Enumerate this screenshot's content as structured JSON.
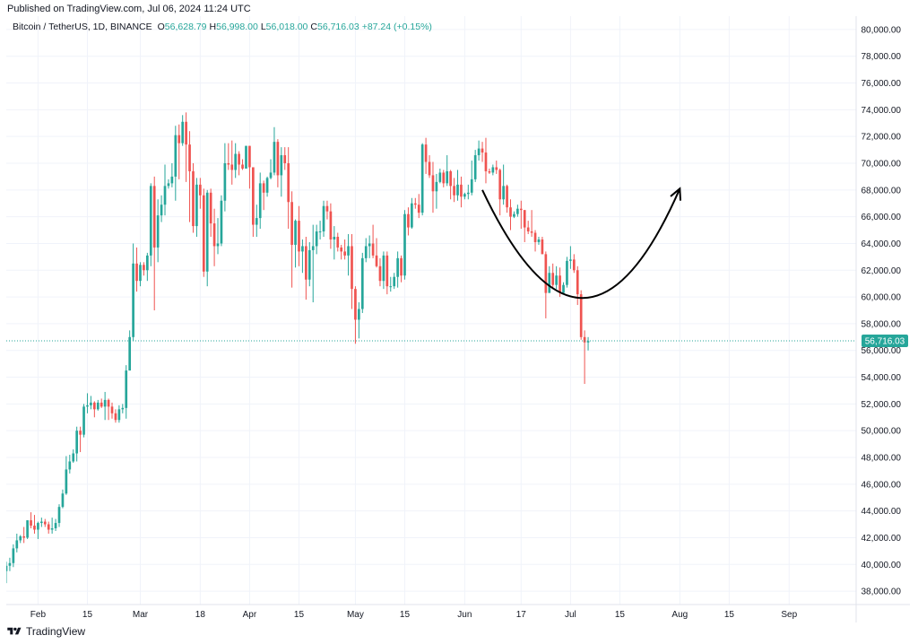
{
  "header": {
    "published": "Published on TradingView.com, Jul 06, 2024 11:24 UTC"
  },
  "legend": {
    "symbol": "Bitcoin / TetherUS, 1D, BINANCE",
    "o_label": "O",
    "o": "56,628.79",
    "h_label": "H",
    "h": "56,998.00",
    "l_label": "L",
    "l": "56,018.00",
    "c_label": "C",
    "c": "56,716.03",
    "change": "+87.24 (+0.15%)"
  },
  "footer": {
    "brand": "TradingView"
  },
  "colors": {
    "up": "#26a69a",
    "down": "#ef5350",
    "grid": "#f0f3fa",
    "text": "#131722"
  },
  "chart_data": {
    "type": "candlestick",
    "x_range": [
      "2024-01-23",
      "2024-09-20"
    ],
    "y_range": [
      37000,
      81000
    ],
    "y_ticks": [
      "38,000.00",
      "40,000.00",
      "42,000.00",
      "44,000.00",
      "46,000.00",
      "48,000.00",
      "50,000.00",
      "52,000.00",
      "54,000.00",
      "56,000.00",
      "58,000.00",
      "60,000.00",
      "62,000.00",
      "64,000.00",
      "66,000.00",
      "68,000.00",
      "70,000.00",
      "72,000.00",
      "74,000.00",
      "76,000.00",
      "78,000.00",
      "80,000.00"
    ],
    "x_ticks": [
      {
        "date": "2024-02-01",
        "label": "Feb"
      },
      {
        "date": "2024-02-15",
        "label": "15"
      },
      {
        "date": "2024-03-01",
        "label": "Mar"
      },
      {
        "date": "2024-03-18",
        "label": "18"
      },
      {
        "date": "2024-04-01",
        "label": "Apr"
      },
      {
        "date": "2024-04-15",
        "label": "15"
      },
      {
        "date": "2024-05-01",
        "label": "May"
      },
      {
        "date": "2024-05-15",
        "label": "15"
      },
      {
        "date": "2024-06-01",
        "label": "Jun"
      },
      {
        "date": "2024-06-17",
        "label": "17"
      },
      {
        "date": "2024-07-01",
        "label": "Jul"
      },
      {
        "date": "2024-07-15",
        "label": "15"
      },
      {
        "date": "2024-08-01",
        "label": "Aug"
      },
      {
        "date": "2024-08-15",
        "label": "15"
      },
      {
        "date": "2024-09-01",
        "label": "Sep"
      }
    ],
    "last_price": 56716.03,
    "last_price_label": "56,716.03",
    "candles": [
      [
        "2024-01-23",
        39500,
        40200,
        38600,
        39900
      ],
      [
        "2024-01-24",
        39900,
        40500,
        39500,
        40100
      ],
      [
        "2024-01-25",
        40100,
        41500,
        39800,
        41200
      ],
      [
        "2024-01-26",
        41200,
        42300,
        40900,
        41800
      ],
      [
        "2024-01-27",
        41800,
        42200,
        41600,
        42100
      ],
      [
        "2024-01-28",
        42100,
        42800,
        41600,
        42000
      ],
      [
        "2024-01-29",
        42000,
        43300,
        41900,
        43300
      ],
      [
        "2024-01-30",
        43300,
        43900,
        42700,
        42900
      ],
      [
        "2024-01-31",
        42900,
        43700,
        42300,
        42600
      ],
      [
        "2024-02-01",
        42600,
        43200,
        41900,
        43100
      ],
      [
        "2024-02-02",
        43100,
        43500,
        42800,
        43200
      ],
      [
        "2024-02-03",
        43200,
        43400,
        42800,
        43000
      ],
      [
        "2024-02-04",
        43000,
        43200,
        42300,
        42600
      ],
      [
        "2024-02-05",
        42600,
        43500,
        42300,
        42700
      ],
      [
        "2024-02-06",
        42700,
        43400,
        42500,
        43100
      ],
      [
        "2024-02-07",
        43100,
        44500,
        42800,
        44300
      ],
      [
        "2024-02-08",
        44300,
        45600,
        44200,
        45300
      ],
      [
        "2024-02-09",
        45300,
        48100,
        45200,
        47100
      ],
      [
        "2024-02-10",
        47100,
        48200,
        46800,
        47700
      ],
      [
        "2024-02-11",
        47700,
        48600,
        47600,
        48300
      ],
      [
        "2024-02-12",
        48300,
        50300,
        47700,
        50000
      ],
      [
        "2024-02-13",
        50000,
        50300,
        48400,
        49700
      ],
      [
        "2024-02-14",
        49700,
        52000,
        49500,
        51800
      ],
      [
        "2024-02-15",
        51800,
        52800,
        51300,
        51900
      ],
      [
        "2024-02-16",
        51900,
        52600,
        51600,
        52100
      ],
      [
        "2024-02-17",
        52100,
        52200,
        51000,
        51600
      ],
      [
        "2024-02-18",
        51600,
        52300,
        51500,
        52100
      ],
      [
        "2024-02-19",
        52100,
        52400,
        51700,
        51800
      ],
      [
        "2024-02-20",
        51800,
        52900,
        50800,
        52300
      ],
      [
        "2024-02-21",
        52300,
        52400,
        50800,
        51800
      ],
      [
        "2024-02-22",
        51800,
        52100,
        50900,
        51300
      ],
      [
        "2024-02-23",
        51300,
        51600,
        50600,
        50800
      ],
      [
        "2024-02-24",
        50800,
        51900,
        50600,
        51600
      ],
      [
        "2024-02-25",
        51600,
        52000,
        51300,
        51700
      ],
      [
        "2024-02-26",
        51700,
        54900,
        50900,
        54500
      ],
      [
        "2024-02-27",
        54500,
        57500,
        54500,
        57000
      ],
      [
        "2024-02-28",
        57000,
        64000,
        56700,
        62500
      ],
      [
        "2024-02-29",
        62500,
        63700,
        60400,
        61200
      ],
      [
        "2024-03-01",
        61200,
        62600,
        60800,
        62400
      ],
      [
        "2024-03-02",
        62400,
        62600,
        61600,
        62000
      ],
      [
        "2024-03-03",
        62000,
        63300,
        61200,
        63100
      ],
      [
        "2024-03-04",
        63100,
        68500,
        62300,
        68300
      ],
      [
        "2024-03-05",
        68300,
        69000,
        59000,
        63700
      ],
      [
        "2024-03-06",
        63700,
        67300,
        62600,
        66100
      ],
      [
        "2024-03-07",
        66100,
        67600,
        65600,
        66900
      ],
      [
        "2024-03-08",
        66900,
        69900,
        66100,
        68300
      ],
      [
        "2024-03-09",
        68300,
        68800,
        68100,
        68500
      ],
      [
        "2024-03-10",
        68500,
        70000,
        68200,
        69000
      ],
      [
        "2024-03-11",
        69000,
        72800,
        67200,
        72100
      ],
      [
        "2024-03-12",
        72100,
        72900,
        68800,
        71500
      ],
      [
        "2024-03-13",
        71500,
        73600,
        71300,
        73100
      ],
      [
        "2024-03-14",
        73100,
        73800,
        68600,
        71400
      ],
      [
        "2024-03-15",
        71400,
        72400,
        65600,
        69400
      ],
      [
        "2024-03-16",
        69400,
        70000,
        64800,
        65300
      ],
      [
        "2024-03-17",
        65300,
        68900,
        64500,
        68400
      ],
      [
        "2024-03-18",
        68400,
        68900,
        66600,
        67600
      ],
      [
        "2024-03-19",
        67600,
        68100,
        61500,
        61900
      ],
      [
        "2024-03-20",
        61900,
        68000,
        60800,
        67800
      ],
      [
        "2024-03-21",
        67800,
        68100,
        64500,
        65500
      ],
      [
        "2024-03-22",
        65500,
        66600,
        62300,
        63800
      ],
      [
        "2024-03-23",
        63800,
        65900,
        63200,
        64000
      ],
      [
        "2024-03-24",
        64000,
        67600,
        63800,
        67200
      ],
      [
        "2024-03-25",
        67200,
        71500,
        66400,
        70000
      ],
      [
        "2024-03-26",
        70000,
        71500,
        69500,
        69900
      ],
      [
        "2024-03-27",
        69900,
        71700,
        68400,
        69500
      ],
      [
        "2024-03-28",
        69500,
        71500,
        68900,
        70700
      ],
      [
        "2024-03-29",
        70700,
        70900,
        69100,
        69900
      ],
      [
        "2024-03-30",
        69900,
        70300,
        69500,
        69600
      ],
      [
        "2024-03-31",
        69600,
        71300,
        69600,
        71300
      ],
      [
        "2024-04-01",
        71300,
        71300,
        68100,
        69700
      ],
      [
        "2024-04-02",
        69700,
        69700,
        64500,
        65400
      ],
      [
        "2024-04-03",
        65400,
        66900,
        64500,
        65900
      ],
      [
        "2024-04-04",
        65900,
        69300,
        65100,
        68500
      ],
      [
        "2024-04-05",
        68500,
        68700,
        66500,
        67800
      ],
      [
        "2024-04-06",
        67800,
        69000,
        67500,
        68900
      ],
      [
        "2024-04-07",
        68900,
        70300,
        68800,
        69300
      ],
      [
        "2024-04-08",
        69300,
        72700,
        69100,
        71600
      ],
      [
        "2024-04-09",
        71600,
        71800,
        68200,
        69100
      ],
      [
        "2024-04-10",
        69100,
        71200,
        67500,
        70600
      ],
      [
        "2024-04-11",
        70600,
        71200,
        69500,
        70000
      ],
      [
        "2024-04-12",
        70000,
        71200,
        65100,
        67100
      ],
      [
        "2024-04-13",
        67100,
        67900,
        60700,
        63900
      ],
      [
        "2024-04-14",
        63900,
        65800,
        62200,
        65700
      ],
      [
        "2024-04-15",
        65700,
        66800,
        62300,
        63400
      ],
      [
        "2024-04-16",
        63400,
        64300,
        61800,
        63800
      ],
      [
        "2024-04-17",
        63800,
        64500,
        59800,
        61300
      ],
      [
        "2024-04-18",
        61300,
        64100,
        60800,
        63500
      ],
      [
        "2024-04-19",
        63500,
        65400,
        59600,
        63800
      ],
      [
        "2024-04-20",
        63800,
        65400,
        63200,
        64900
      ],
      [
        "2024-04-21",
        64900,
        65700,
        64300,
        64900
      ],
      [
        "2024-04-22",
        64900,
        67200,
        64500,
        66800
      ],
      [
        "2024-04-23",
        66800,
        67200,
        65800,
        66400
      ],
      [
        "2024-04-24",
        66400,
        67000,
        63600,
        64300
      ],
      [
        "2024-04-25",
        64300,
        65300,
        62800,
        64500
      ],
      [
        "2024-04-26",
        64500,
        64800,
        63400,
        63700
      ],
      [
        "2024-04-27",
        63700,
        63900,
        62800,
        63400
      ],
      [
        "2024-04-28",
        63400,
        64300,
        62800,
        63100
      ],
      [
        "2024-04-29",
        63100,
        64700,
        61600,
        63800
      ],
      [
        "2024-04-30",
        63800,
        64700,
        59100,
        60600
      ],
      [
        "2024-05-01",
        60600,
        60800,
        56500,
        58300
      ],
      [
        "2024-05-02",
        58300,
        59600,
        56900,
        59100
      ],
      [
        "2024-05-03",
        59100,
        63300,
        58800,
        62900
      ],
      [
        "2024-05-04",
        62900,
        64400,
        62600,
        63800
      ],
      [
        "2024-05-05",
        63800,
        64600,
        62900,
        64000
      ],
      [
        "2024-05-06",
        64000,
        65400,
        62900,
        63100
      ],
      [
        "2024-05-07",
        63100,
        64400,
        62200,
        62300
      ],
      [
        "2024-05-08",
        62300,
        62900,
        60800,
        61200
      ],
      [
        "2024-05-09",
        61200,
        63400,
        60600,
        63100
      ],
      [
        "2024-05-10",
        63100,
        63400,
        60200,
        60800
      ],
      [
        "2024-05-11",
        60800,
        61500,
        60400,
        60800
      ],
      [
        "2024-05-12",
        60800,
        61800,
        60600,
        61500
      ],
      [
        "2024-05-13",
        61500,
        63400,
        60700,
        62900
      ],
      [
        "2024-05-14",
        62900,
        63100,
        61100,
        61600
      ],
      [
        "2024-05-15",
        61600,
        66500,
        61300,
        66200
      ],
      [
        "2024-05-16",
        66200,
        66700,
        64600,
        65200
      ],
      [
        "2024-05-17",
        65200,
        67400,
        65100,
        67000
      ],
      [
        "2024-05-18",
        67000,
        67400,
        66600,
        66900
      ],
      [
        "2024-05-19",
        66900,
        67700,
        65900,
        66300
      ],
      [
        "2024-05-20",
        66300,
        71500,
        66100,
        71400
      ],
      [
        "2024-05-21",
        71400,
        71900,
        69200,
        70100
      ],
      [
        "2024-05-22",
        70100,
        70600,
        68900,
        69100
      ],
      [
        "2024-05-23",
        69100,
        70100,
        66300,
        67900
      ],
      [
        "2024-05-24",
        67900,
        69200,
        66600,
        68600
      ],
      [
        "2024-05-25",
        68600,
        69600,
        68500,
        69300
      ],
      [
        "2024-05-26",
        69300,
        69500,
        68200,
        68500
      ],
      [
        "2024-05-27",
        68500,
        70600,
        68300,
        69400
      ],
      [
        "2024-05-28",
        69400,
        69500,
        67300,
        68300
      ],
      [
        "2024-05-29",
        68300,
        68900,
        67100,
        67600
      ],
      [
        "2024-05-30",
        67600,
        69500,
        67200,
        68400
      ],
      [
        "2024-05-31",
        68400,
        69000,
        66700,
        67500
      ],
      [
        "2024-06-01",
        67500,
        67800,
        67300,
        67700
      ],
      [
        "2024-06-02",
        67700,
        68400,
        67300,
        67800
      ],
      [
        "2024-06-03",
        67800,
        70200,
        67600,
        68800
      ],
      [
        "2024-06-04",
        68800,
        71000,
        68600,
        70600
      ],
      [
        "2024-06-05",
        70600,
        71700,
        70200,
        71100
      ],
      [
        "2024-06-06",
        71100,
        71600,
        70100,
        70800
      ],
      [
        "2024-06-07",
        70800,
        71900,
        68500,
        69400
      ],
      [
        "2024-06-08",
        69400,
        69600,
        69200,
        69300
      ],
      [
        "2024-06-09",
        69300,
        69900,
        69100,
        69700
      ],
      [
        "2024-06-10",
        69700,
        70200,
        69200,
        69500
      ],
      [
        "2024-06-11",
        69500,
        69600,
        66100,
        67300
      ],
      [
        "2024-06-12",
        67300,
        69900,
        66900,
        68300
      ],
      [
        "2024-06-13",
        68300,
        68400,
        66300,
        66700
      ],
      [
        "2024-06-14",
        66700,
        67300,
        65000,
        66000
      ],
      [
        "2024-06-15",
        66000,
        66400,
        65900,
        66200
      ],
      [
        "2024-06-16",
        66200,
        66900,
        66000,
        66600
      ],
      [
        "2024-06-17",
        66600,
        67200,
        65100,
        66500
      ],
      [
        "2024-06-18",
        66500,
        66500,
        64100,
        65200
      ],
      [
        "2024-06-19",
        65200,
        65700,
        64700,
        64900
      ],
      [
        "2024-06-20",
        64900,
        66500,
        64500,
        64800
      ],
      [
        "2024-06-21",
        64800,
        65000,
        63400,
        64100
      ],
      [
        "2024-06-22",
        64100,
        64500,
        63900,
        64300
      ],
      [
        "2024-06-23",
        64300,
        64500,
        63200,
        63200
      ],
      [
        "2024-06-24",
        63200,
        63400,
        58400,
        60300
      ],
      [
        "2024-06-25",
        60300,
        62300,
        60300,
        61800
      ],
      [
        "2024-06-26",
        61800,
        62500,
        60700,
        60900
      ],
      [
        "2024-06-27",
        60900,
        62300,
        60600,
        61600
      ],
      [
        "2024-06-28",
        61600,
        62200,
        60000,
        60300
      ],
      [
        "2024-06-29",
        60300,
        61100,
        60300,
        60900
      ],
      [
        "2024-06-30",
        60900,
        63000,
        60700,
        62700
      ],
      [
        "2024-07-01",
        62700,
        63800,
        62100,
        62800
      ],
      [
        "2024-07-02",
        62800,
        63200,
        61800,
        62000
      ],
      [
        "2024-07-03",
        62000,
        62300,
        59400,
        60200
      ],
      [
        "2024-07-04",
        60200,
        60500,
        56800,
        57000
      ],
      [
        "2024-07-05",
        57000,
        57500,
        53500,
        56600
      ],
      [
        "2024-07-06",
        56600,
        57000,
        56000,
        56700
      ]
    ],
    "annotation": {
      "type": "arrow-curve",
      "points": [
        [
          "2024-06-06",
          68000
        ],
        [
          "2024-07-05",
          51800
        ],
        [
          "2024-08-01",
          68100
        ]
      ]
    }
  }
}
